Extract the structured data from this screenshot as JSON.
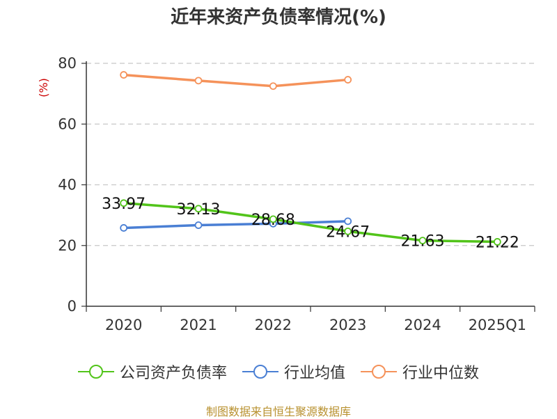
{
  "chart_data": {
    "type": "line",
    "title": "近年来资产负债率情况(%)",
    "ylabel": "(%)",
    "xlabel": "",
    "categories": [
      "2020",
      "2021",
      "2022",
      "2023",
      "2024",
      "2025Q1"
    ],
    "ylim": [
      0,
      80
    ],
    "yticks": [
      0,
      20,
      40,
      60,
      80
    ],
    "grid": true,
    "legend_position": "bottom",
    "series": [
      {
        "name": "公司资产负债率",
        "color": "#52c41a",
        "values": [
          33.97,
          32.13,
          28.68,
          24.67,
          21.63,
          21.22
        ],
        "labels": [
          "33.97",
          "32.13",
          "28.68",
          "24.67",
          "21.63",
          "21.22"
        ]
      },
      {
        "name": "行业均值",
        "color": "#4a7fd4",
        "values": [
          25.8,
          26.7,
          27.2,
          28.0,
          null,
          null
        ]
      },
      {
        "name": "行业中位数",
        "color": "#f5925a",
        "values": [
          76.2,
          74.3,
          72.5,
          74.6,
          null,
          null
        ]
      }
    ]
  },
  "source": "制图数据来自恒生聚源数据库"
}
